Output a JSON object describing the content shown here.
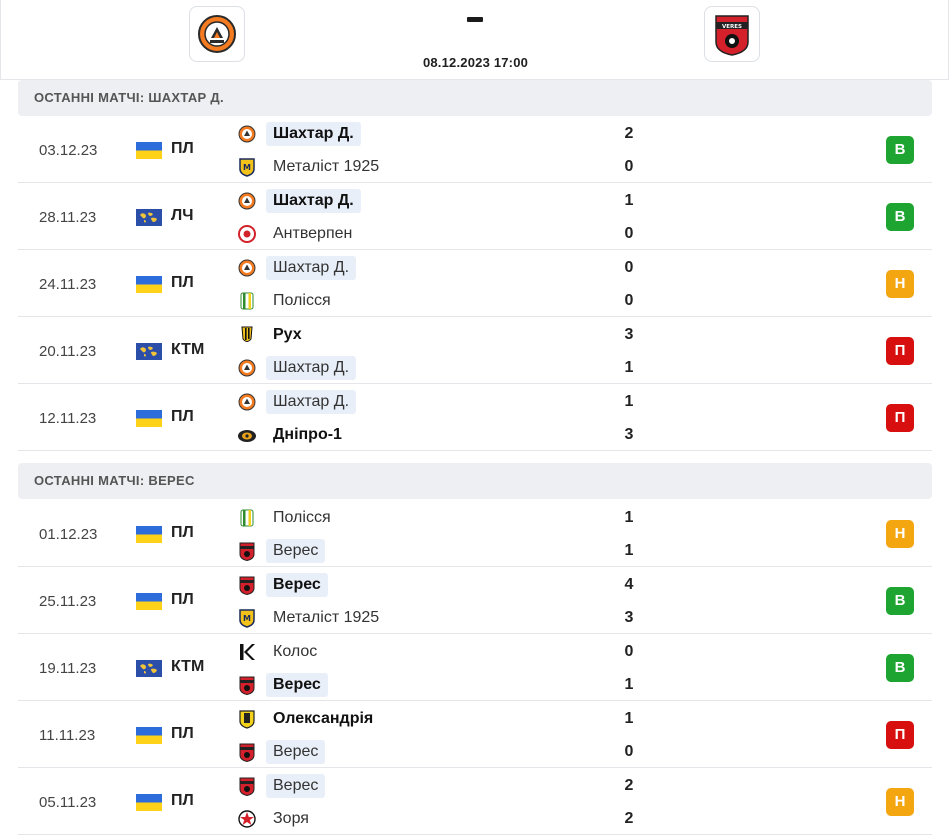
{
  "header": {
    "home_logo": "shakhtar-logo",
    "away_logo": "veres-logo",
    "away_logo_text": "VERES",
    "kickoff": "08.12.2023 17:00"
  },
  "colors": {
    "win": "#1ea431",
    "draw": "#f3a60f",
    "loss": "#d80f0f",
    "section_bg": "#edeff2",
    "highlight_bg": "#e9eff8"
  },
  "sections": [
    {
      "title": "ОСТАННІ МАТЧІ: ШАХТАР Д.",
      "matches": [
        {
          "date": "03.12.23",
          "flag": "ua",
          "comp": "ПЛ",
          "home": {
            "name": "Шахтар Д.",
            "logo": "shakhtar",
            "score": "2",
            "win": true,
            "hl": true
          },
          "away": {
            "name": "Металіст 1925",
            "logo": "metalist",
            "score": "0",
            "win": false,
            "hl": false
          },
          "result": "В",
          "result_type": "w"
        },
        {
          "date": "28.11.23",
          "flag": "world",
          "comp": "ЛЧ",
          "home": {
            "name": "Шахтар Д.",
            "logo": "shakhtar",
            "score": "1",
            "win": true,
            "hl": true
          },
          "away": {
            "name": "Антверпен",
            "logo": "antwerp",
            "score": "0",
            "win": false,
            "hl": false
          },
          "result": "В",
          "result_type": "w"
        },
        {
          "date": "24.11.23",
          "flag": "ua",
          "comp": "ПЛ",
          "home": {
            "name": "Шахтар Д.",
            "logo": "shakhtar",
            "score": "0",
            "win": false,
            "hl": true
          },
          "away": {
            "name": "Полісся",
            "logo": "polissia",
            "score": "0",
            "win": false,
            "hl": false
          },
          "result": "Н",
          "result_type": "d"
        },
        {
          "date": "20.11.23",
          "flag": "world",
          "comp": "КТМ",
          "home": {
            "name": "Рух",
            "logo": "rukh",
            "score": "3",
            "win": true,
            "hl": false
          },
          "away": {
            "name": "Шахтар Д.",
            "logo": "shakhtar",
            "score": "1",
            "win": false,
            "hl": true
          },
          "result": "П",
          "result_type": "l"
        },
        {
          "date": "12.11.23",
          "flag": "ua",
          "comp": "ПЛ",
          "home": {
            "name": "Шахтар Д.",
            "logo": "shakhtar",
            "score": "1",
            "win": false,
            "hl": true
          },
          "away": {
            "name": "Дніпро-1",
            "logo": "dnipro",
            "score": "3",
            "win": true,
            "hl": false
          },
          "result": "П",
          "result_type": "l"
        }
      ]
    },
    {
      "title": "ОСТАННІ МАТЧІ: ВЕРЕС",
      "matches": [
        {
          "date": "01.12.23",
          "flag": "ua",
          "comp": "ПЛ",
          "home": {
            "name": "Полісся",
            "logo": "polissia",
            "score": "1",
            "win": false,
            "hl": false
          },
          "away": {
            "name": "Верес",
            "logo": "veres",
            "score": "1",
            "win": false,
            "hl": true
          },
          "result": "Н",
          "result_type": "d"
        },
        {
          "date": "25.11.23",
          "flag": "ua",
          "comp": "ПЛ",
          "home": {
            "name": "Верес",
            "logo": "veres",
            "score": "4",
            "win": true,
            "hl": true
          },
          "away": {
            "name": "Металіст 1925",
            "logo": "metalist",
            "score": "3",
            "win": false,
            "hl": false
          },
          "result": "В",
          "result_type": "w"
        },
        {
          "date": "19.11.23",
          "flag": "world",
          "comp": "КТМ",
          "home": {
            "name": "Колос",
            "logo": "kolos",
            "score": "0",
            "win": false,
            "hl": false
          },
          "away": {
            "name": "Верес",
            "logo": "veres",
            "score": "1",
            "win": true,
            "hl": true
          },
          "result": "В",
          "result_type": "w"
        },
        {
          "date": "11.11.23",
          "flag": "ua",
          "comp": "ПЛ",
          "home": {
            "name": "Олександрія",
            "logo": "oleksandriya",
            "score": "1",
            "win": true,
            "hl": false
          },
          "away": {
            "name": "Верес",
            "logo": "veres",
            "score": "0",
            "win": false,
            "hl": true
          },
          "result": "П",
          "result_type": "l"
        },
        {
          "date": "05.11.23",
          "flag": "ua",
          "comp": "ПЛ",
          "home": {
            "name": "Верес",
            "logo": "veres",
            "score": "2",
            "win": false,
            "hl": true
          },
          "away": {
            "name": "Зоря",
            "logo": "zorya",
            "score": "2",
            "win": false,
            "hl": false
          },
          "result": "Н",
          "result_type": "d"
        }
      ]
    }
  ]
}
